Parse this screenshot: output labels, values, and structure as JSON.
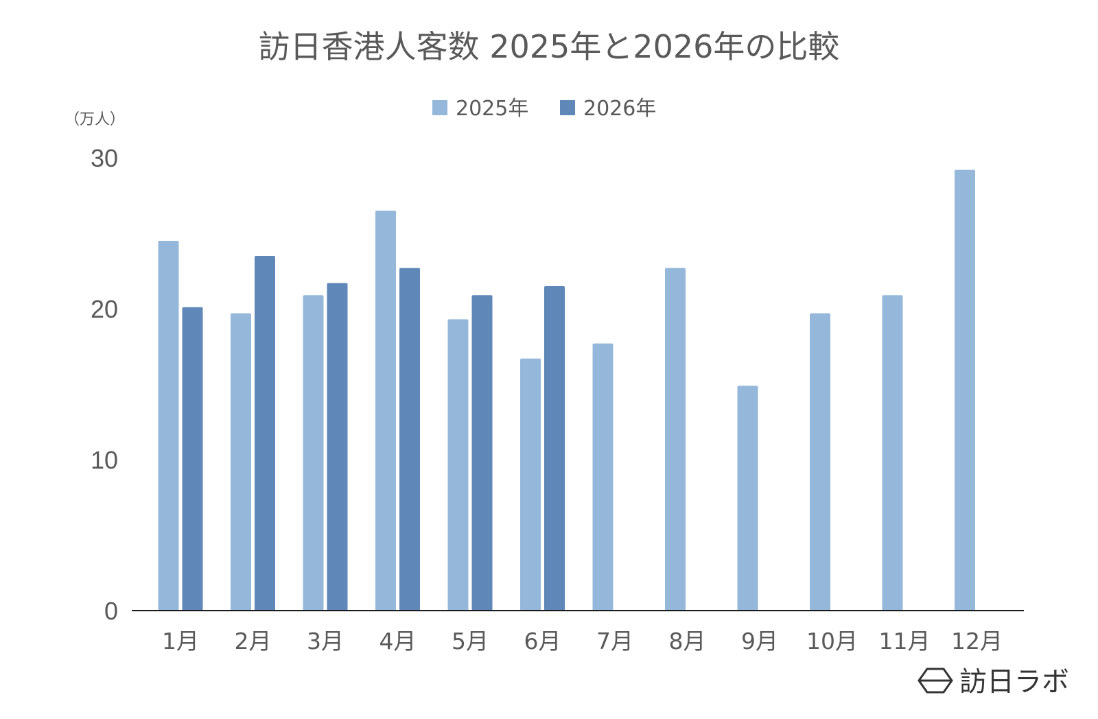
{
  "chart_data": {
    "type": "bar",
    "title": "訪日香港人客数 2025年と2026年の比較",
    "ylabel": "（万人）",
    "xlabel": "",
    "categories": [
      "1月",
      "2月",
      "3月",
      "4月",
      "5月",
      "6月",
      "7月",
      "8月",
      "9月",
      "10月",
      "11月",
      "12月"
    ],
    "series": [
      {
        "name": "2025年",
        "color": "#95b8da",
        "values": [
          24.5,
          19.7,
          20.9,
          26.5,
          19.3,
          16.7,
          17.7,
          22.7,
          14.9,
          19.7,
          20.9,
          29.2
        ]
      },
      {
        "name": "2026年",
        "color": "#5f87b8",
        "values": [
          20.1,
          23.5,
          21.7,
          22.7,
          20.9,
          21.5,
          null,
          null,
          null,
          null,
          null,
          null
        ]
      }
    ],
    "ylim": [
      0,
      30
    ],
    "yticks": [
      0,
      10,
      20,
      30
    ],
    "grid": false,
    "legend_position": "top-center"
  },
  "brand": {
    "logo_icon": "hexagon-logo-icon",
    "name": "訪日ラボ"
  }
}
